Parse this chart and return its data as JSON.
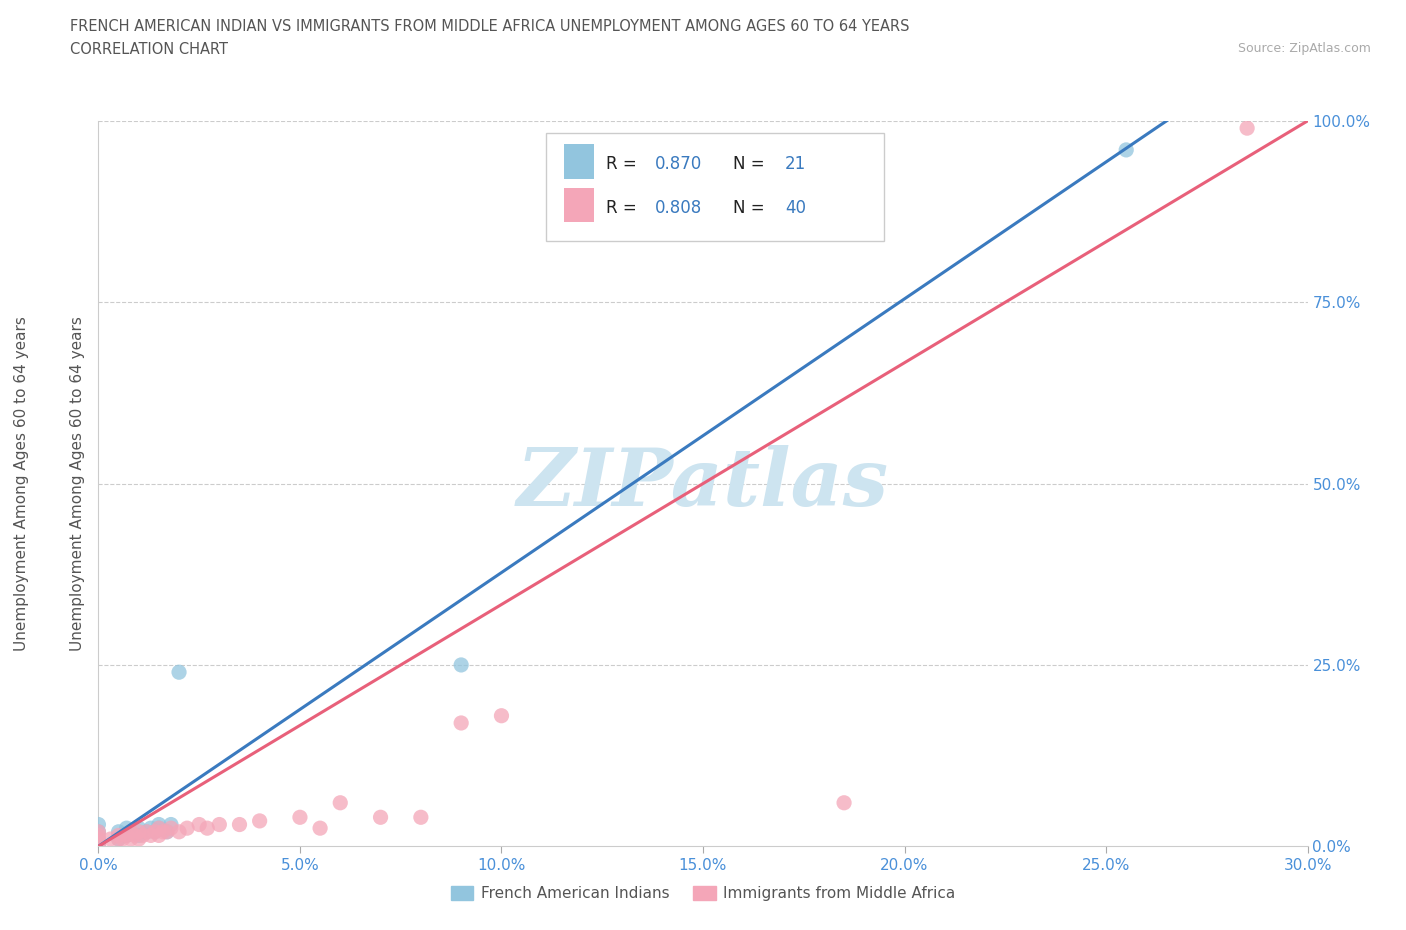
{
  "title_line1": "FRENCH AMERICAN INDIAN VS IMMIGRANTS FROM MIDDLE AFRICA UNEMPLOYMENT AMONG AGES 60 TO 64 YEARS",
  "title_line2": "CORRELATION CHART",
  "source_text": "Source: ZipAtlas.com",
  "ylabel": "Unemployment Among Ages 60 to 64 years",
  "xlim": [
    0.0,
    0.3
  ],
  "ylim": [
    0.0,
    1.0
  ],
  "xticks": [
    0.0,
    0.05,
    0.1,
    0.15,
    0.2,
    0.25,
    0.3
  ],
  "xticklabels": [
    "0.0%",
    "5.0%",
    "10.0%",
    "15.0%",
    "20.0%",
    "25.0%",
    "30.0%"
  ],
  "yticks": [
    0.0,
    0.25,
    0.5,
    0.75,
    1.0
  ],
  "yticklabels": [
    "0.0%",
    "25.0%",
    "50.0%",
    "75.0%",
    "100.0%"
  ],
  "blue_color": "#92c5de",
  "pink_color": "#f4a6b8",
  "blue_line_color": "#3a7abf",
  "pink_line_color": "#e8607a",
  "watermark_color": "#cde4f0",
  "R_blue": 0.87,
  "N_blue": 21,
  "R_pink": 0.808,
  "N_pink": 40,
  "legend_label_blue": "French American Indians",
  "legend_label_pink": "Immigrants from Middle Africa",
  "blue_scatter_x": [
    0.0,
    0.0,
    0.0,
    0.0,
    0.005,
    0.005,
    0.007,
    0.007,
    0.008,
    0.01,
    0.01,
    0.012,
    0.013,
    0.014,
    0.015,
    0.015,
    0.017,
    0.018,
    0.02,
    0.09,
    0.255
  ],
  "blue_scatter_y": [
    0.0,
    0.01,
    0.02,
    0.03,
    0.01,
    0.02,
    0.015,
    0.025,
    0.02,
    0.015,
    0.025,
    0.02,
    0.025,
    0.02,
    0.025,
    0.03,
    0.02,
    0.03,
    0.24,
    0.25,
    0.96
  ],
  "pink_scatter_x": [
    0.0,
    0.0,
    0.0,
    0.0,
    0.0,
    0.003,
    0.005,
    0.005,
    0.006,
    0.007,
    0.008,
    0.008,
    0.009,
    0.01,
    0.01,
    0.011,
    0.012,
    0.013,
    0.014,
    0.015,
    0.015,
    0.016,
    0.017,
    0.018,
    0.02,
    0.022,
    0.025,
    0.027,
    0.03,
    0.035,
    0.04,
    0.05,
    0.055,
    0.06,
    0.07,
    0.08,
    0.09,
    0.1,
    0.185,
    0.285
  ],
  "pink_scatter_y": [
    0.0,
    0.005,
    0.01,
    0.015,
    0.02,
    0.01,
    0.01,
    0.015,
    0.01,
    0.015,
    0.01,
    0.02,
    0.015,
    0.01,
    0.02,
    0.015,
    0.02,
    0.015,
    0.02,
    0.015,
    0.025,
    0.02,
    0.02,
    0.025,
    0.02,
    0.025,
    0.03,
    0.025,
    0.03,
    0.03,
    0.035,
    0.04,
    0.025,
    0.06,
    0.04,
    0.04,
    0.17,
    0.18,
    0.06,
    0.99
  ],
  "blue_line_x": [
    0.0,
    0.265
  ],
  "blue_line_y": [
    0.0,
    1.0
  ],
  "pink_line_x": [
    0.0,
    0.3
  ],
  "pink_line_y": [
    0.0,
    1.0
  ]
}
